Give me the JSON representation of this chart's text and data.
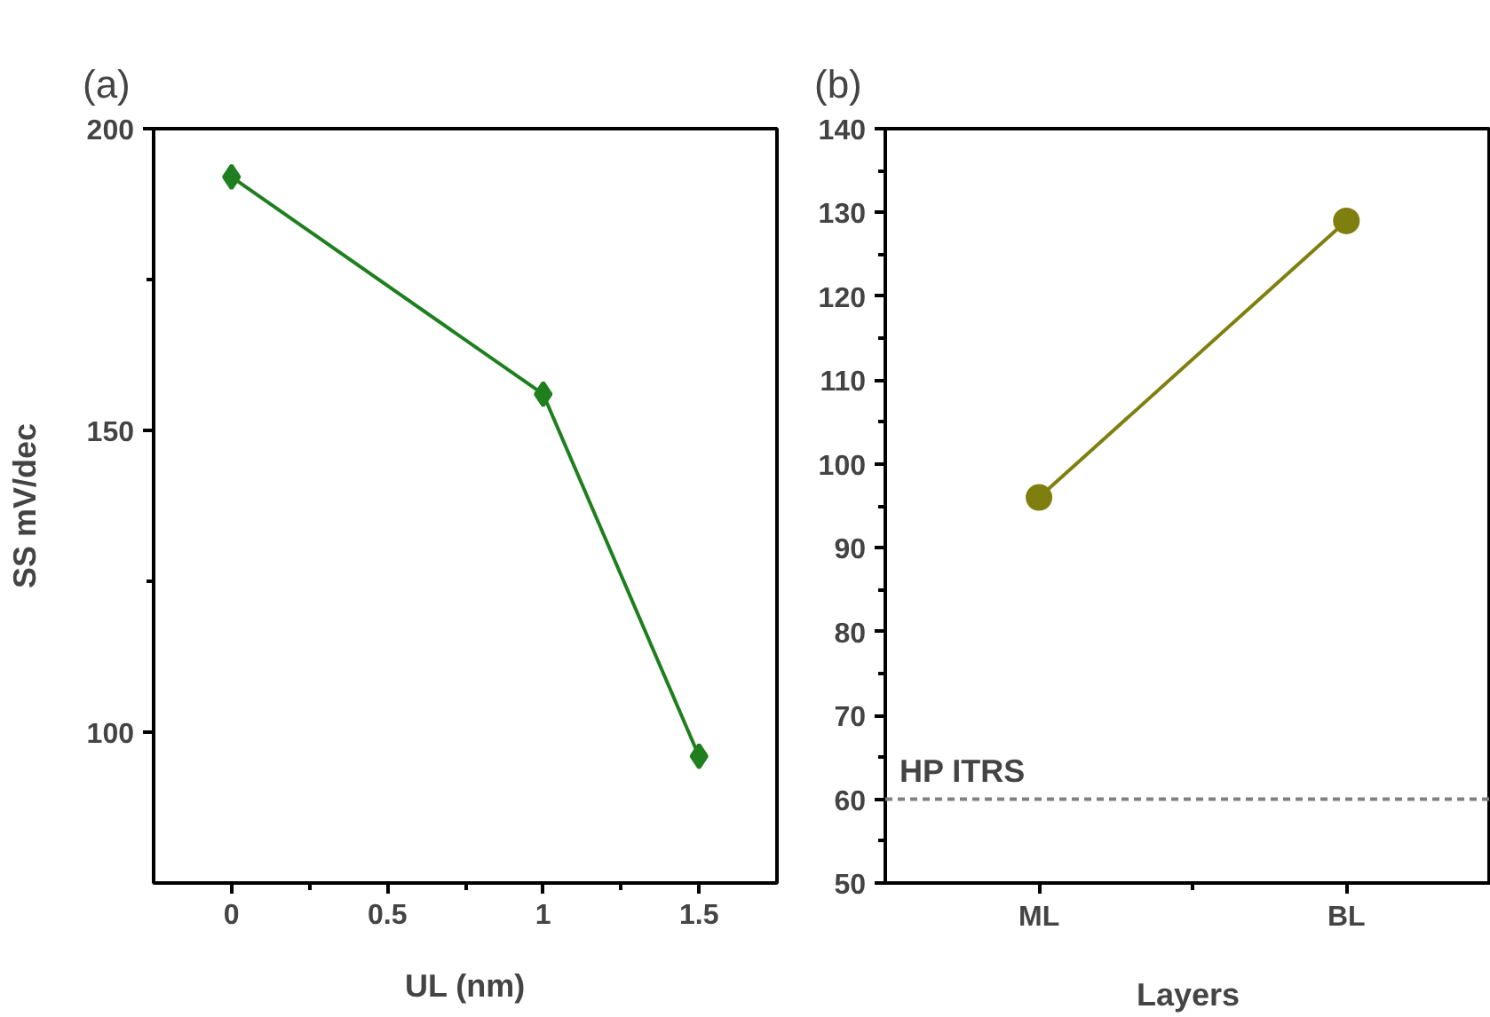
{
  "chart_data": [
    {
      "type": "line",
      "title": "(a)",
      "xlabel": "UL (nm)",
      "ylabel": "SS mV/dec",
      "x": [
        0,
        1,
        1.5
      ],
      "series": [
        {
          "color": "#1f7f1f",
          "values": [
            192,
            156,
            96
          ]
        }
      ],
      "marker": "diamond",
      "grid": false,
      "xlim": [
        -0.25,
        1.75
      ],
      "xticks": [
        0,
        {
          "value": 0.25,
          "label": null
        },
        0.5,
        {
          "value": 0.75,
          "label": null
        },
        1,
        {
          "value": 1.25,
          "label": null
        },
        1.5
      ],
      "ylim": [
        75,
        200
      ],
      "yticks": [
        100,
        {
          "value": 125,
          "label": null
        },
        150,
        {
          "value": 175,
          "label": null
        },
        200
      ]
    },
    {
      "type": "line",
      "title": "(b)",
      "xlabel": "Layers",
      "categories": [
        "ML",
        "BL"
      ],
      "series": [
        {
          "color": "#7f7f0f",
          "values": [
            96,
            129
          ]
        }
      ],
      "marker": "circle",
      "grid": false,
      "ylim": [
        50,
        140
      ],
      "yticks": [
        50,
        {
          "value": 55,
          "label": null
        },
        60,
        {
          "value": 65,
          "label": null
        },
        70,
        {
          "value": 75,
          "label": null
        },
        80,
        {
          "value": 85,
          "label": null
        },
        90,
        {
          "value": 95,
          "label": null
        },
        100,
        {
          "value": 105,
          "label": null
        },
        110,
        {
          "value": 115,
          "label": null
        },
        120,
        {
          "value": 125,
          "label": null
        },
        130,
        {
          "value": 135,
          "label": null
        },
        140
      ],
      "ref_lines": [
        {
          "axis": "y",
          "value": 60,
          "label": "HP ITRS",
          "color": "#808080",
          "line_style": "dashed"
        }
      ]
    }
  ]
}
